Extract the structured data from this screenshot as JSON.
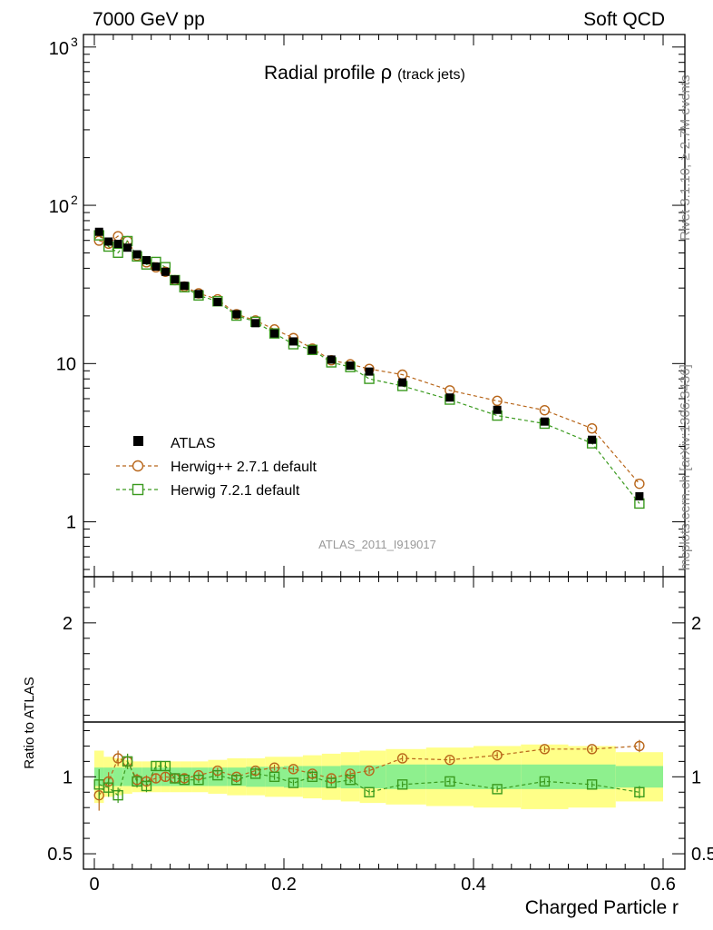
{
  "header": {
    "left_label": "7000 GeV pp",
    "right_label": "Soft QCD"
  },
  "side_labels": {
    "rivet": "Rivet 3.1.10, ≥ 2.7M events",
    "mcplots": "mcplots.cern.ch [arXiv:1306.3436]"
  },
  "chart_data": {
    "type": "scatter",
    "title": "Radial profile",
    "title_symbol": "ρ",
    "title_suffix": "(track jets)",
    "analysis_id": "ATLAS_2011_I919017",
    "xlabel": "Charged Particle r",
    "ylabel_ratio": "Ratio to ATLAS",
    "xlim": [
      -0.02,
      0.6
    ],
    "ylim_main": [
      0.45,
      1200
    ],
    "ylim_ratio": [
      0.4,
      2.3
    ],
    "x_ticks": [
      {
        "value": 0.0,
        "label": "0"
      },
      {
        "value": 0.2,
        "label": "0.2"
      },
      {
        "value": 0.4,
        "label": "0.4"
      },
      {
        "value": 0.6,
        "label": "0.6"
      }
    ],
    "main_ticks": [
      {
        "value": 1,
        "label": "1"
      },
      {
        "value": 10,
        "label": "10"
      },
      {
        "value": 100,
        "label": "10",
        "exponent": "2"
      },
      {
        "value": 1000,
        "label": "10",
        "exponent": "3"
      }
    ],
    "ratio_ticks": [
      {
        "value": 0.5,
        "label": "0.5"
      },
      {
        "value": 1,
        "label": "1"
      },
      {
        "value": 2,
        "label": "2"
      }
    ],
    "x": [
      0.005,
      0.015,
      0.025,
      0.035,
      0.045,
      0.055,
      0.065,
      0.075,
      0.085,
      0.095,
      0.11,
      0.13,
      0.15,
      0.17,
      0.19,
      0.21,
      0.23,
      0.25,
      0.27,
      0.29,
      0.325,
      0.375,
      0.425,
      0.475,
      0.525,
      0.575
    ],
    "series": [
      {
        "name": "ATLAS",
        "color": "#000000",
        "marker": "filled-square",
        "values": [
          68,
          59,
          57,
          54,
          49,
          45,
          41,
          38,
          34,
          31,
          27.5,
          24.5,
          20.5,
          18,
          15.5,
          13.8,
          12.2,
          10.6,
          9.7,
          8.9,
          7.6,
          6.1,
          5.1,
          4.3,
          3.3,
          1.45
        ],
        "band_halfwidth": [
          0.17,
          0.13,
          0.12,
          0.11,
          0.1,
          0.1,
          0.1,
          0.1,
          0.1,
          0.1,
          0.1,
          0.11,
          0.12,
          0.12,
          0.13,
          0.13,
          0.14,
          0.15,
          0.16,
          0.17,
          0.18,
          0.19,
          0.2,
          0.21,
          0.2,
          0.16
        ],
        "stat_halfwidth": [
          0.06,
          0.06,
          0.06,
          0.06,
          0.06,
          0.06,
          0.06,
          0.06,
          0.06,
          0.06,
          0.06,
          0.06,
          0.06,
          0.065,
          0.065,
          0.07,
          0.07,
          0.07,
          0.075,
          0.075,
          0.08,
          0.08,
          0.08,
          0.08,
          0.08,
          0.07
        ]
      },
      {
        "name": "Herwig++ 2.7.1 default",
        "color": "#b8661a",
        "marker": "open-circle",
        "ratio": [
          0.88,
          0.97,
          1.12,
          1.1,
          0.98,
          0.97,
          0.99,
          1.0,
          0.99,
          0.99,
          1.01,
          1.04,
          1.0,
          1.04,
          1.06,
          1.05,
          1.02,
          0.99,
          1.02,
          1.04,
          1.12,
          1.11,
          1.14,
          1.18,
          1.18,
          1.2
        ],
        "ratio_err": [
          0.1,
          0.06,
          0.05,
          0.05,
          0.04,
          0.04,
          0.03,
          0.03,
          0.03,
          0.03,
          0.02,
          0.02,
          0.02,
          0.02,
          0.02,
          0.02,
          0.02,
          0.02,
          0.02,
          0.02,
          0.02,
          0.02,
          0.02,
          0.02,
          0.02,
          0.04
        ]
      },
      {
        "name": "Herwig 7.2.1 default",
        "color": "#3a9a1e",
        "marker": "open-square",
        "ratio": [
          0.95,
          0.93,
          0.88,
          1.1,
          0.97,
          0.94,
          1.07,
          1.07,
          0.99,
          0.98,
          0.98,
          1.01,
          0.98,
          1.02,
          1.0,
          0.96,
          1.0,
          0.96,
          0.98,
          0.9,
          0.95,
          0.97,
          0.92,
          0.97,
          0.95,
          0.9
        ]
      }
    ]
  }
}
